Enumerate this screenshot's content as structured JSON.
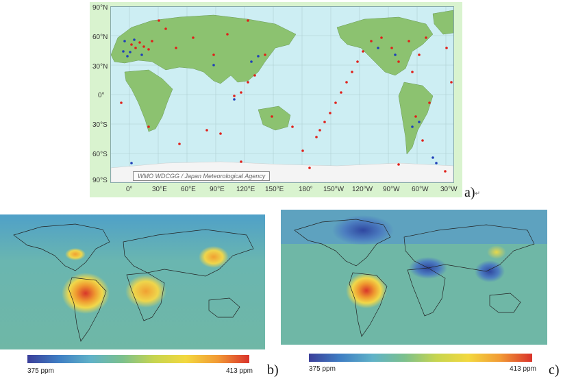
{
  "panel_a": {
    "label": "a)",
    "credit": "WMO WDCGG / Japan Meteorological Agency",
    "lat_ticks": [
      "90°N",
      "60°N",
      "30°N",
      "0°",
      "30°S",
      "60°S",
      "90°S"
    ],
    "lon_ticks": [
      "0°",
      "30°E",
      "60°E",
      "90°E",
      "120°E",
      "150°E",
      "180°",
      "150°W",
      "120°W",
      "90°W",
      "60°W",
      "30°W"
    ]
  },
  "panel_b": {
    "label": "b)",
    "colorbar": {
      "min_label": "375 ppm",
      "max_label": "413 ppm"
    }
  },
  "panel_c": {
    "label": "c)",
    "colorbar": {
      "min_label": "375 ppm",
      "max_label": "413 ppm"
    }
  },
  "colors": {
    "station_red": "#e0201a",
    "station_blue": "#1f3fb8",
    "ocean_a": "#cdeef3",
    "land_a": "#8cc270",
    "heat_bg": "#6fb7a6"
  }
}
